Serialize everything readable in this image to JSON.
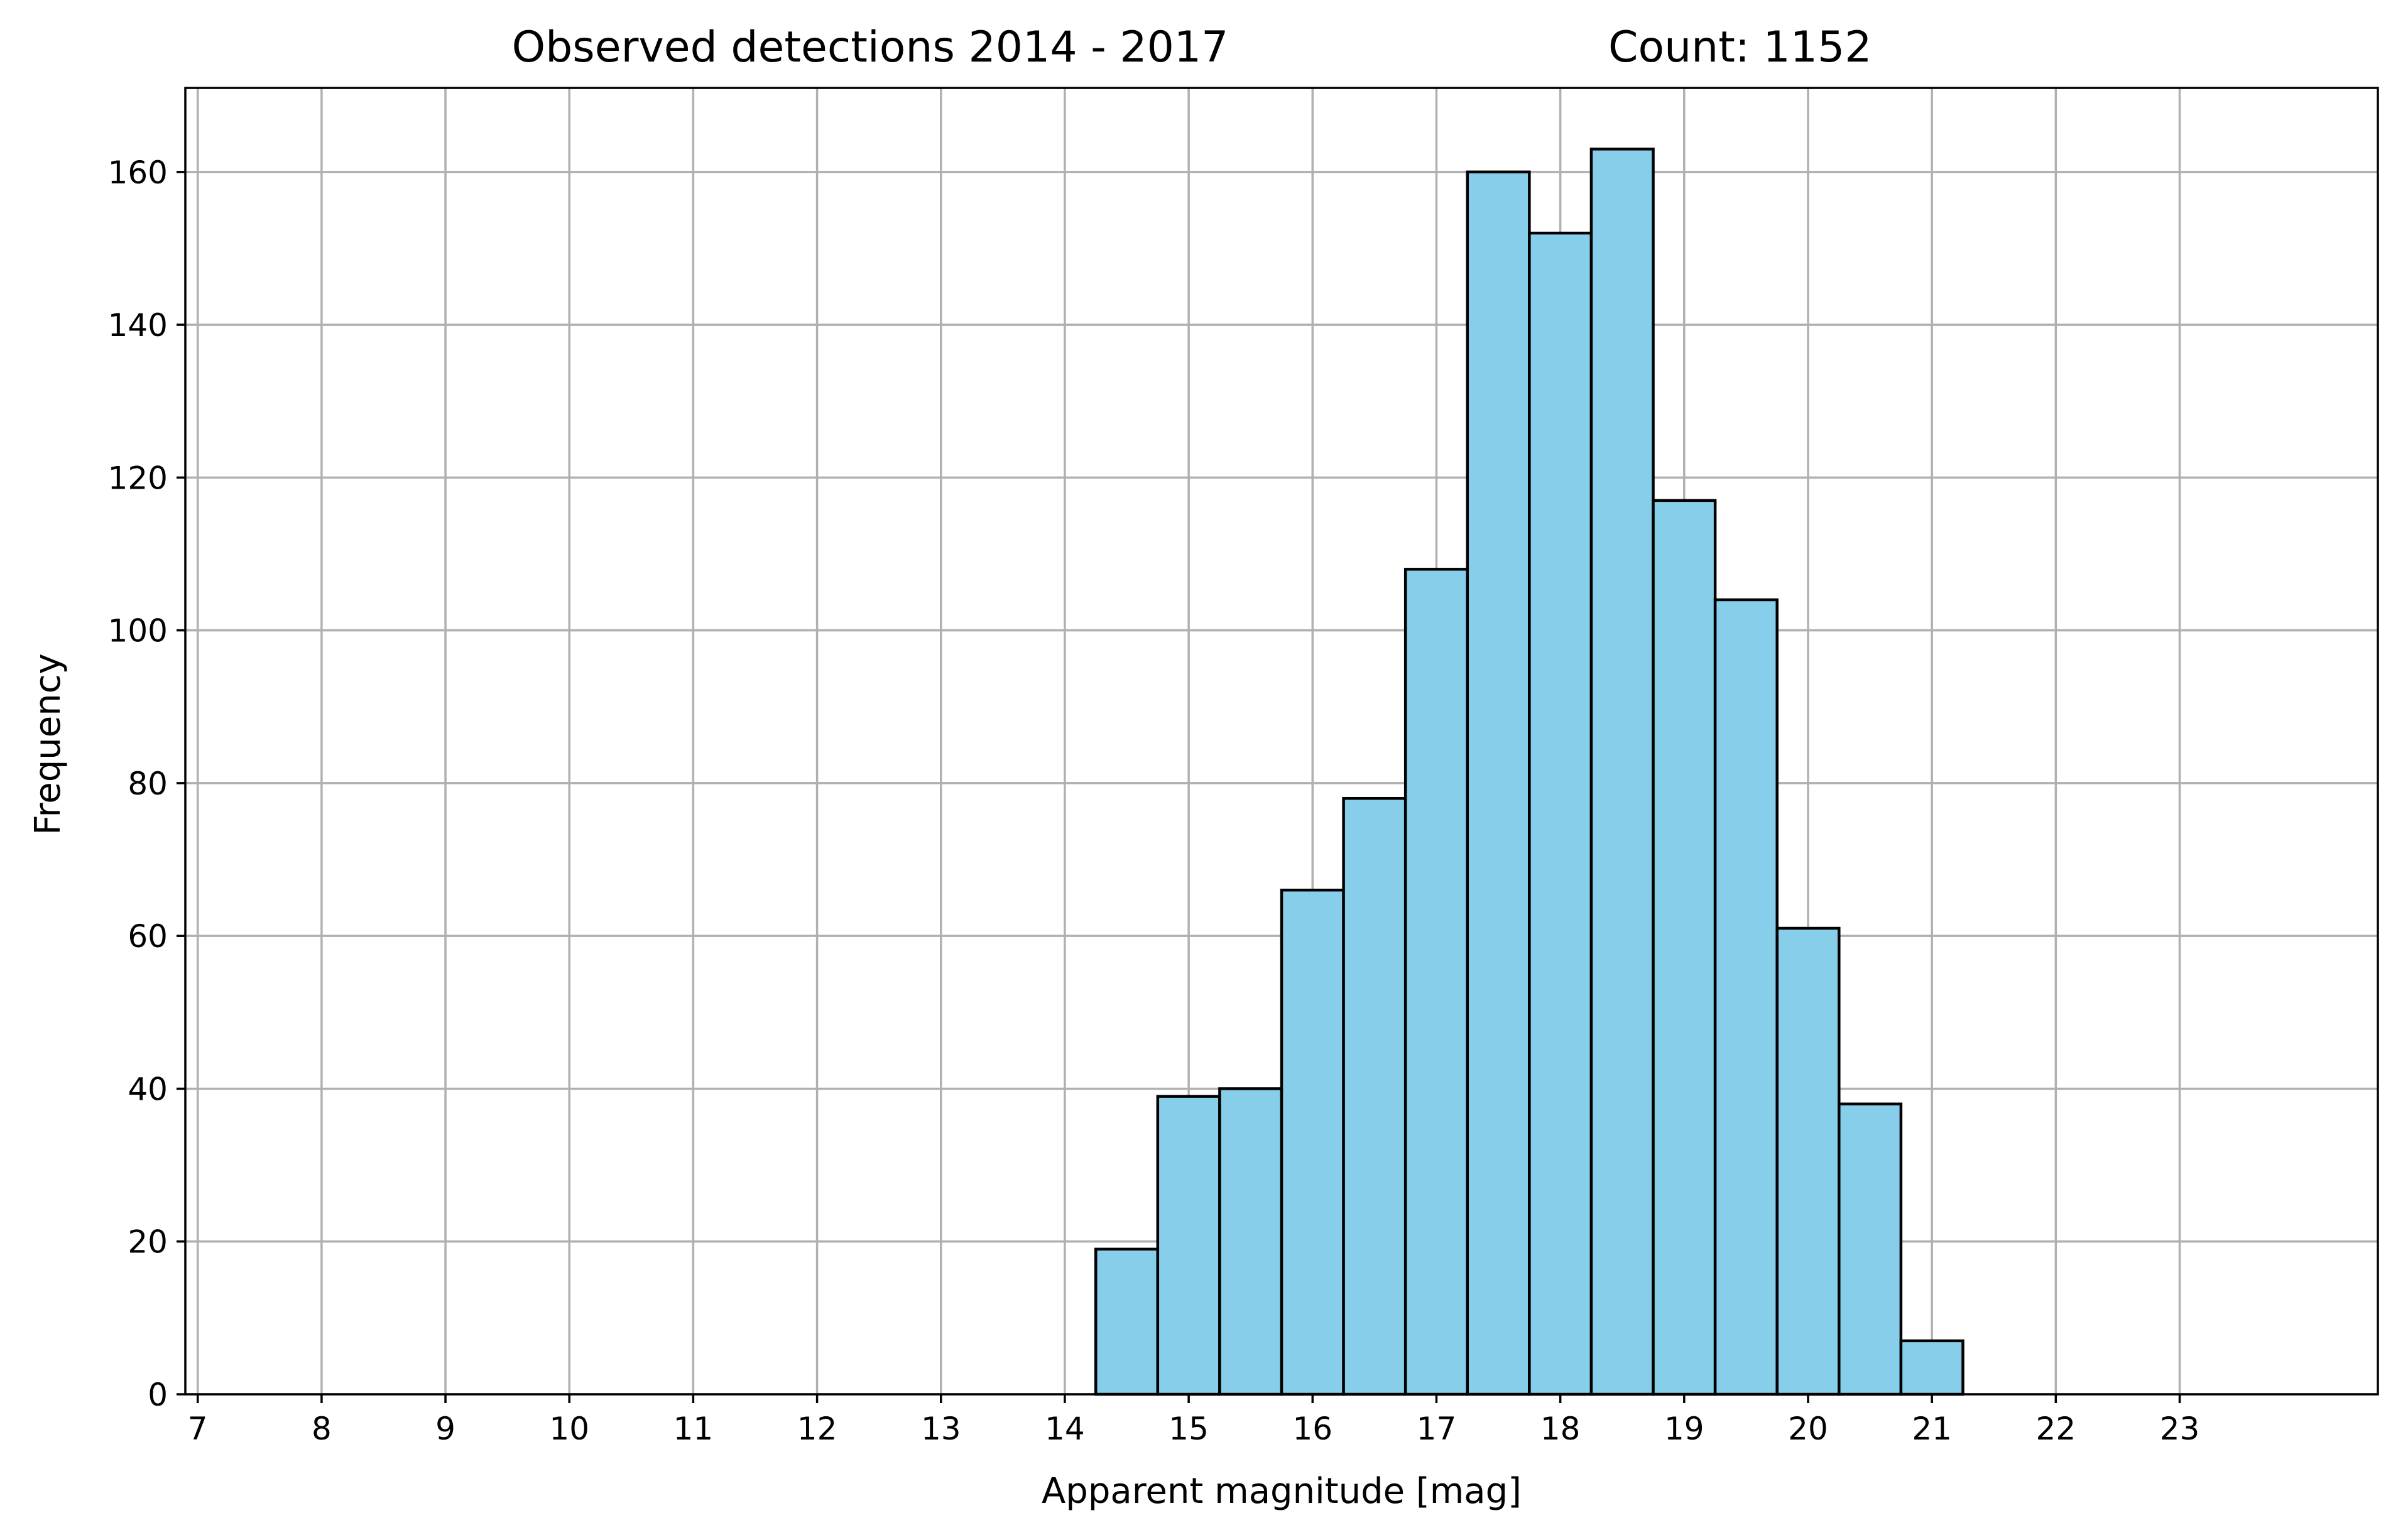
{
  "chart_data": {
    "type": "bar",
    "title_left": "Observed detections 2014 - 2017",
    "title_right": "Count: 1152",
    "xlabel": "Apparent magnitude [mag]",
    "ylabel": "Frequency",
    "xlim": [
      6.9,
      24.6
    ],
    "ylim": [
      0,
      171
    ],
    "grid": true,
    "bar_color": "#87ceeb",
    "edge_color": "#000000",
    "bin_width": 0.5,
    "bin_edges": [
      7.75,
      8.25,
      8.75,
      9.25,
      9.75,
      10.25,
      10.75,
      11.25,
      11.75,
      12.25,
      12.75,
      13.25,
      13.75,
      14.25,
      14.75,
      15.25,
      15.75,
      16.25,
      16.75,
      17.25,
      17.75,
      18.25,
      18.75,
      19.25,
      19.75,
      20.25,
      20.75,
      21.25,
      21.75,
      22.25,
      22.75,
      23.25,
      23.75,
      24.25
    ],
    "values": [
      0,
      0,
      0,
      0,
      0,
      0,
      0,
      0,
      0,
      0,
      0,
      0,
      0,
      19,
      39,
      40,
      66,
      78,
      108,
      160,
      152,
      163,
      117,
      104,
      61,
      38,
      7,
      0,
      0,
      0,
      0,
      0,
      0
    ],
    "xticks": [
      7,
      8,
      9,
      10,
      11,
      12,
      13,
      14,
      15,
      16,
      17,
      18,
      19,
      20,
      21,
      22,
      23
    ],
    "xtick_labels": [
      "7",
      "8",
      "9",
      "10",
      "11",
      "12",
      "13",
      "14",
      "15",
      "16",
      "17",
      "18",
      "19",
      "20",
      "21",
      "22",
      "23"
    ],
    "yticks": [
      0,
      20,
      40,
      60,
      80,
      100,
      120,
      140,
      160
    ],
    "ytick_labels": [
      "0",
      "20",
      "40",
      "60",
      "80",
      "100",
      "120",
      "140",
      "160"
    ]
  }
}
